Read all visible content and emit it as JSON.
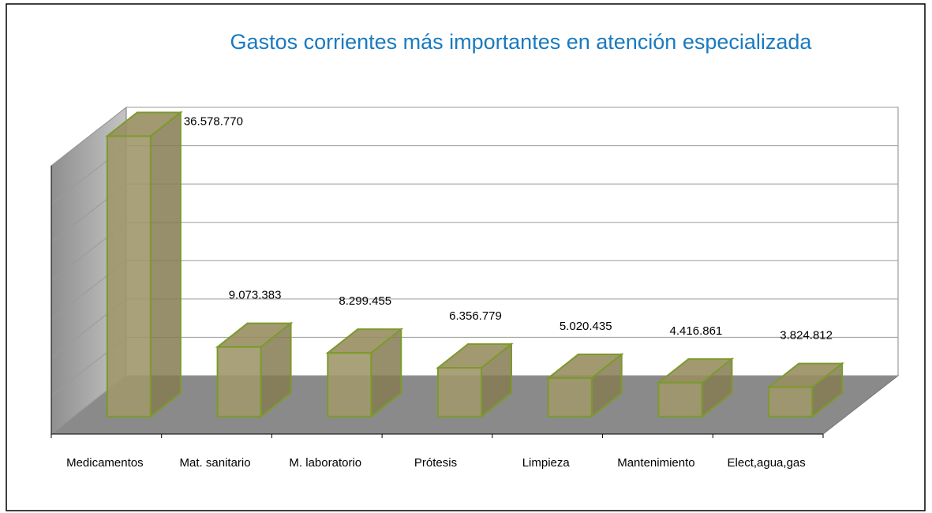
{
  "chart_data": {
    "type": "bar3d",
    "title": "Gastos corrientes más importantes en atención especializada",
    "categories": [
      "Medicamentos",
      "Mat. sanitario",
      "M. laboratorio",
      "Prótesis",
      "Limpieza",
      "Mantenimiento",
      "Elect,agua,gas"
    ],
    "values": [
      36578770,
      9073383,
      8299455,
      6356779,
      5020435,
      4416861,
      3824812
    ],
    "value_labels": [
      "36.578.770",
      "9.073.383",
      "8.299.455",
      "6.356.779",
      "5.020.435",
      "4.416.861",
      "3.824.812"
    ],
    "color": "#a0976a",
    "ylim": [
      0,
      35000000
    ],
    "yticks": [
      0,
      5000000,
      10000000,
      15000000,
      20000000,
      25000000,
      30000000,
      35000000
    ],
    "grid": true
  }
}
